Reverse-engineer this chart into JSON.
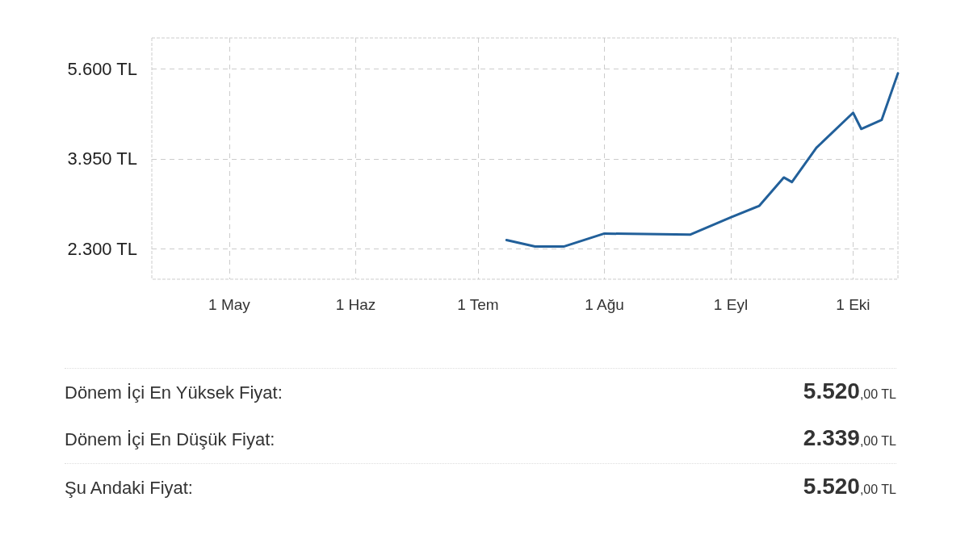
{
  "chart_data": {
    "type": "line",
    "x": [
      "--07-08",
      "--07-15",
      "--07-22",
      "--08-01",
      "--08-22",
      "--09-01",
      "--09-08",
      "--09-14",
      "--09-16",
      "--09-22",
      "--10-01",
      "--10-03",
      "--10-08",
      "--10-12"
    ],
    "series": [
      {
        "color": "#22609a",
        "values": [
          2459,
          2339,
          2339,
          2578,
          2557,
          2875,
          3088,
          3608,
          3523,
          4153,
          4796,
          4499,
          4663,
          5520
        ]
      }
    ],
    "xlim": [
      "--04-12",
      "--10-12"
    ],
    "xticks": [
      {
        "value": "--05-01",
        "label": "1 May"
      },
      {
        "value": "--06-01",
        "label": "1 Haz"
      },
      {
        "value": "--07-01",
        "label": "1 Tem"
      },
      {
        "value": "--08-01",
        "label": "1 Ağu"
      },
      {
        "value": "--09-01",
        "label": "1 Eyl"
      },
      {
        "value": "--10-01",
        "label": "1 Eki"
      }
    ],
    "ylim": [
      1740,
      6170
    ],
    "yticks": [
      {
        "value": 2300,
        "label": "2.300 TL"
      },
      {
        "value": 3950,
        "label": "3.950 TL"
      },
      {
        "value": 5600,
        "label": "5.600 TL"
      }
    ],
    "grid": true,
    "line_style": "solid",
    "marker": "none",
    "annotations": [
      "Dönem İçi En Yüksek Fiyat:",
      "5.520,00 TL",
      "Dönem İçi En Düşük Fiyat:",
      "2.339,00 TL",
      "Şu Andaki Fiyat:",
      "5.520,00 TL"
    ]
  }
}
